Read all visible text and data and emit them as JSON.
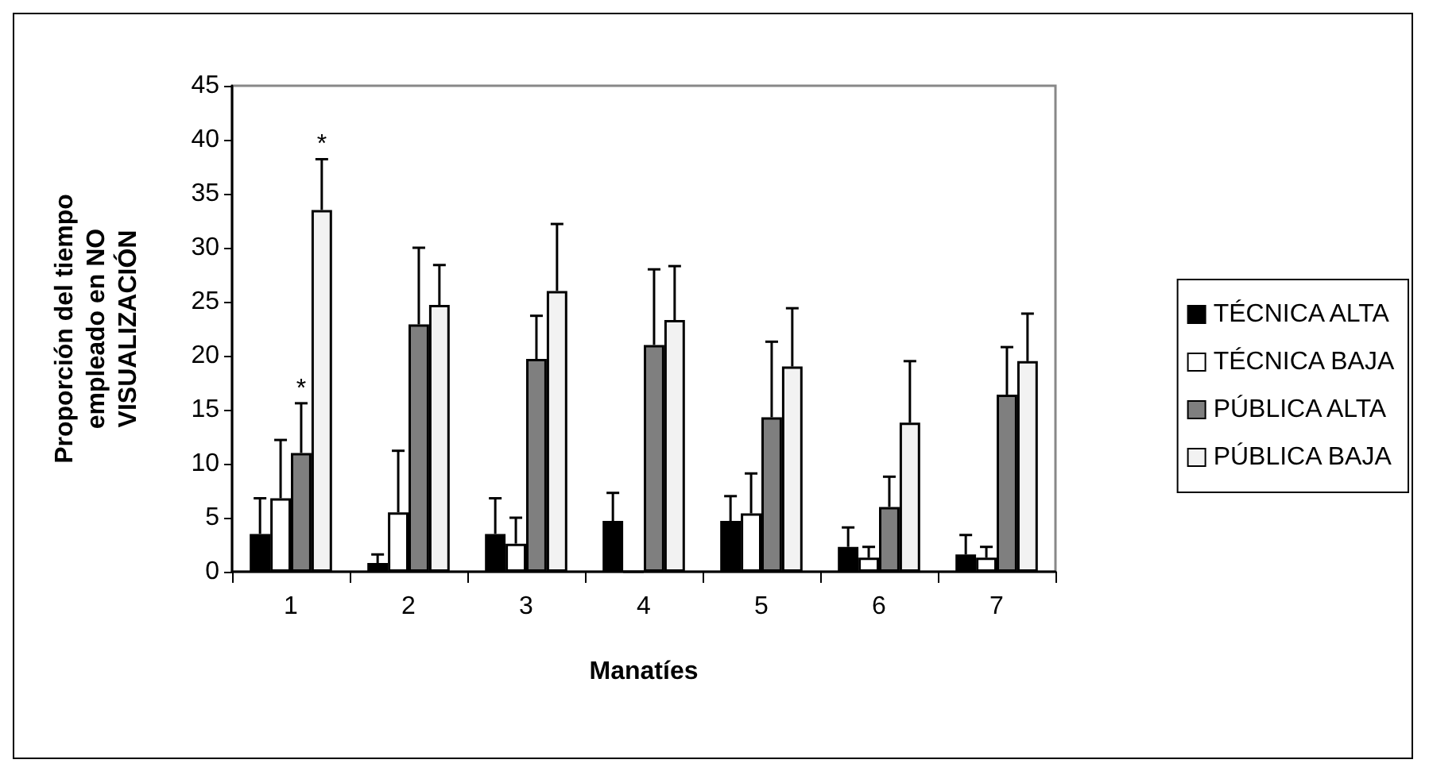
{
  "chart_data": {
    "type": "bar",
    "xlabel": "Manatíes",
    "ylabel": "Proporción del tiempo\nempleado en NO\nVISUALIZACIÓN",
    "categories": [
      "1",
      "2",
      "3",
      "4",
      "5",
      "6",
      "7"
    ],
    "series": [
      {
        "name": "TÉCNICA ALTA",
        "color": "#000000",
        "values": [
          3.5,
          0.8,
          3.5,
          4.7,
          4.7,
          2.3,
          1.6
        ],
        "errors": [
          [
            3.5,
            6.8
          ],
          [
            0.8,
            1.6
          ],
          [
            3.5,
            6.8
          ],
          [
            4.7,
            7.3
          ],
          [
            4.7,
            7.0
          ],
          [
            2.3,
            4.1
          ],
          [
            1.6,
            3.4
          ]
        ]
      },
      {
        "name": "TÉCNICA BAJA",
        "color": "#ffffff",
        "values": [
          6.8,
          5.5,
          2.6,
          0,
          5.4,
          1.3,
          1.3
        ],
        "errors": [
          [
            6.8,
            12.2
          ],
          [
            5.5,
            11.2
          ],
          [
            2.6,
            5.0
          ],
          null,
          [
            5.4,
            9.1
          ],
          [
            1.3,
            2.3
          ],
          [
            1.3,
            2.3
          ]
        ]
      },
      {
        "name": "PÚBLICA ALTA",
        "color": "#7f7f7f",
        "values": [
          11.0,
          22.9,
          19.7,
          21.0,
          14.3,
          6.0,
          16.4
        ],
        "errors": [
          [
            11.0,
            15.6
          ],
          [
            22.9,
            30.0
          ],
          [
            19.7,
            23.7
          ],
          [
            21.0,
            28.0
          ],
          [
            14.3,
            21.3
          ],
          [
            6.0,
            8.8
          ],
          [
            16.4,
            20.8
          ]
        ]
      },
      {
        "name": "PÚBLICA BAJA",
        "color": "#f2f2f2",
        "values": [
          33.5,
          24.7,
          26.0,
          23.3,
          19.0,
          13.8,
          19.5
        ],
        "errors": [
          [
            33.5,
            38.2
          ],
          [
            24.7,
            28.4
          ],
          [
            26.0,
            32.2
          ],
          [
            23.3,
            28.3
          ],
          [
            19.0,
            24.4
          ],
          [
            13.8,
            19.5
          ],
          [
            19.5,
            23.9
          ]
        ]
      }
    ],
    "ylim": [
      0,
      45
    ],
    "yticks": [
      0,
      5,
      10,
      15,
      20,
      25,
      30,
      35,
      40,
      45
    ],
    "grid": false,
    "legend": "right",
    "annotations": [
      {
        "text": "*",
        "x": "1",
        "y": 15.6
      },
      "*"
    ]
  }
}
